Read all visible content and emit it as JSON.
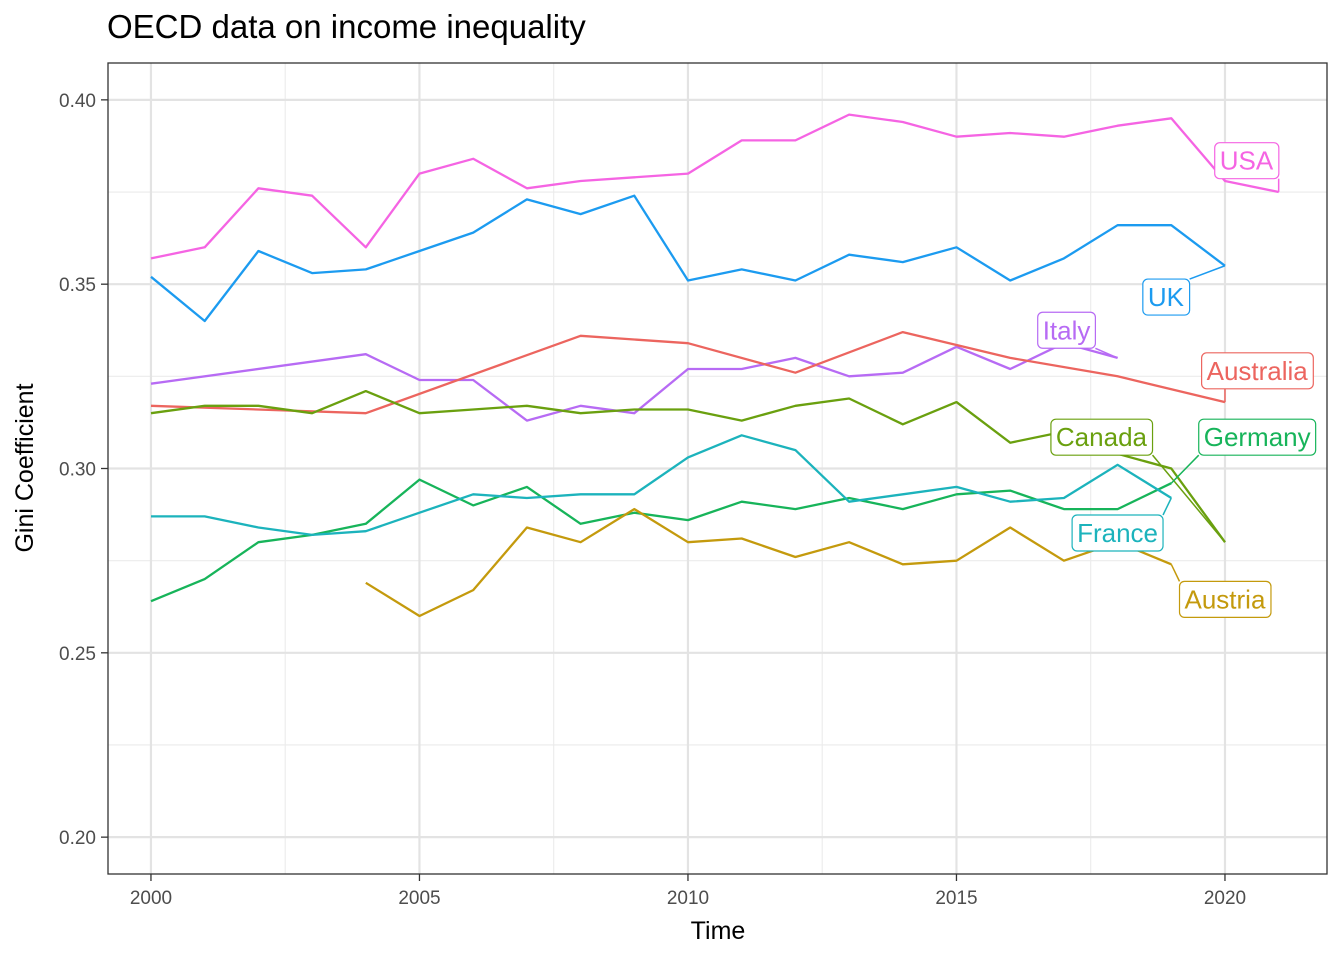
{
  "chart_data": {
    "type": "line",
    "title": "OECD data on income inequality",
    "xlabel": "Time",
    "ylabel": "Gini Coefficient",
    "xlim": [
      1999.2,
      2021.9
    ],
    "ylim": [
      0.19,
      0.41
    ],
    "x_ticks": [
      2000,
      2005,
      2010,
      2015,
      2020
    ],
    "x_tick_labels": [
      "2000",
      "2005",
      "2010",
      "2015",
      "2020"
    ],
    "y_ticks": [
      0.2,
      0.25,
      0.3,
      0.35,
      0.4
    ],
    "y_tick_labels": [
      "0.20",
      "0.25",
      "0.30",
      "0.35",
      "0.40"
    ],
    "x_minor_ticks": [
      2002.5,
      2007.5,
      2012.5,
      2017.5
    ],
    "y_minor_ticks": [
      0.225,
      0.275,
      0.325,
      0.375
    ],
    "grid": true,
    "legend": "direct labels",
    "series": [
      {
        "name": "USA",
        "color": "#F564E3",
        "label_at": [
          2020.4,
          0.3835
        ],
        "points": [
          [
            2000,
            0.357
          ],
          [
            2001,
            0.36
          ],
          [
            2002,
            0.376
          ],
          [
            2003,
            0.374
          ],
          [
            2004,
            0.36
          ],
          [
            2005,
            0.38
          ],
          [
            2006,
            0.384
          ],
          [
            2007,
            0.376
          ],
          [
            2008,
            0.378
          ],
          [
            2009,
            0.379
          ],
          [
            2010,
            0.38
          ],
          [
            2011,
            0.389
          ],
          [
            2012,
            0.389
          ],
          [
            2013,
            0.396
          ],
          [
            2014,
            0.394
          ],
          [
            2015,
            0.39
          ],
          [
            2016,
            0.391
          ],
          [
            2017,
            0.39
          ],
          [
            2018,
            0.393
          ],
          [
            2019,
            0.395
          ],
          [
            2020,
            0.378
          ],
          [
            2021,
            0.375
          ]
        ]
      },
      {
        "name": "UK",
        "color": "#1C9BF0",
        "label_at": [
          2018.9,
          0.3465
        ],
        "points": [
          [
            2000,
            0.352
          ],
          [
            2001,
            0.34
          ],
          [
            2002,
            0.359
          ],
          [
            2003,
            0.353
          ],
          [
            2004,
            0.354
          ],
          [
            2005,
            0.359
          ],
          [
            2006,
            0.364
          ],
          [
            2007,
            0.373
          ],
          [
            2008,
            0.369
          ],
          [
            2009,
            0.374
          ],
          [
            2010,
            0.351
          ],
          [
            2011,
            0.354
          ],
          [
            2012,
            0.351
          ],
          [
            2013,
            0.358
          ],
          [
            2014,
            0.356
          ],
          [
            2015,
            0.36
          ],
          [
            2016,
            0.351
          ],
          [
            2017,
            0.357
          ],
          [
            2018,
            0.366
          ],
          [
            2019,
            0.366
          ],
          [
            2020,
            0.355
          ]
        ]
      },
      {
        "name": "Italy",
        "color": "#B76BF4",
        "label_at": [
          2017.05,
          0.3375
        ],
        "points": [
          [
            2000,
            0.323
          ],
          [
            2004,
            0.331
          ],
          [
            2005,
            0.324
          ],
          [
            2006,
            0.324
          ],
          [
            2007,
            0.313
          ],
          [
            2008,
            0.317
          ],
          [
            2009,
            0.315
          ],
          [
            2010,
            0.327
          ],
          [
            2011,
            0.327
          ],
          [
            2012,
            0.33
          ],
          [
            2013,
            0.325
          ],
          [
            2014,
            0.326
          ],
          [
            2015,
            0.333
          ],
          [
            2016,
            0.327
          ],
          [
            2017,
            0.334
          ],
          [
            2018,
            0.33
          ]
        ]
      },
      {
        "name": "Australia",
        "color": "#EC655F",
        "label_at": [
          2020.6,
          0.3265
        ],
        "points": [
          [
            2000,
            0.317
          ],
          [
            2004,
            0.315
          ],
          [
            2008,
            0.336
          ],
          [
            2010,
            0.334
          ],
          [
            2012,
            0.326
          ],
          [
            2014,
            0.337
          ],
          [
            2016,
            0.33
          ],
          [
            2018,
            0.325
          ],
          [
            2020,
            0.318
          ]
        ]
      },
      {
        "name": "Canada",
        "color": "#6AA00F",
        "label_at": [
          2017.7,
          0.3085
        ],
        "points": [
          [
            2000,
            0.315
          ],
          [
            2001,
            0.317
          ],
          [
            2002,
            0.317
          ],
          [
            2003,
            0.315
          ],
          [
            2004,
            0.321
          ],
          [
            2005,
            0.315
          ],
          [
            2006,
            0.316
          ],
          [
            2007,
            0.317
          ],
          [
            2008,
            0.315
          ],
          [
            2009,
            0.316
          ],
          [
            2010,
            0.316
          ],
          [
            2011,
            0.313
          ],
          [
            2012,
            0.317
          ],
          [
            2013,
            0.319
          ],
          [
            2014,
            0.312
          ],
          [
            2015,
            0.318
          ],
          [
            2016,
            0.307
          ],
          [
            2017,
            0.31
          ],
          [
            2018,
            0.304
          ],
          [
            2019,
            0.3
          ],
          [
            2020,
            0.28
          ]
        ]
      },
      {
        "name": "Germany",
        "color": "#17B45A",
        "label_at": [
          2020.6,
          0.3085
        ],
        "points": [
          [
            2000,
            0.264
          ],
          [
            2001,
            0.27
          ],
          [
            2002,
            0.28
          ],
          [
            2003,
            0.282
          ],
          [
            2004,
            0.285
          ],
          [
            2005,
            0.297
          ],
          [
            2006,
            0.29
          ],
          [
            2007,
            0.295
          ],
          [
            2008,
            0.285
          ],
          [
            2009,
            0.288
          ],
          [
            2010,
            0.286
          ],
          [
            2011,
            0.291
          ],
          [
            2012,
            0.289
          ],
          [
            2013,
            0.292
          ],
          [
            2014,
            0.289
          ],
          [
            2015,
            0.293
          ],
          [
            2016,
            0.294
          ],
          [
            2017,
            0.289
          ],
          [
            2018,
            0.289
          ],
          [
            2019,
            0.296
          ]
        ]
      },
      {
        "name": "France",
        "color": "#1CB3BC",
        "label_at": [
          2018.0,
          0.2825
        ],
        "points": [
          [
            2000,
            0.287
          ],
          [
            2001,
            0.287
          ],
          [
            2002,
            0.284
          ],
          [
            2003,
            0.282
          ],
          [
            2004,
            0.283
          ],
          [
            2005,
            0.288
          ],
          [
            2006,
            0.293
          ],
          [
            2007,
            0.292
          ],
          [
            2008,
            0.293
          ],
          [
            2009,
            0.293
          ],
          [
            2010,
            0.303
          ],
          [
            2011,
            0.309
          ],
          [
            2012,
            0.305
          ],
          [
            2013,
            0.291
          ],
          [
            2014,
            0.293
          ],
          [
            2015,
            0.295
          ],
          [
            2016,
            0.291
          ],
          [
            2017,
            0.292
          ],
          [
            2018,
            0.301
          ],
          [
            2019,
            0.292
          ]
        ]
      },
      {
        "name": "Austria",
        "color": "#C49A0D",
        "label_at": [
          2020.0,
          0.2645
        ],
        "points": [
          [
            2004,
            0.269
          ],
          [
            2005,
            0.26
          ],
          [
            2006,
            0.267
          ],
          [
            2007,
            0.284
          ],
          [
            2008,
            0.28
          ],
          [
            2009,
            0.289
          ],
          [
            2010,
            0.28
          ],
          [
            2011,
            0.281
          ],
          [
            2012,
            0.276
          ],
          [
            2013,
            0.28
          ],
          [
            2014,
            0.274
          ],
          [
            2015,
            0.275
          ],
          [
            2016,
            0.284
          ],
          [
            2017,
            0.275
          ],
          [
            2018,
            0.28
          ],
          [
            2019,
            0.274
          ]
        ]
      }
    ]
  }
}
